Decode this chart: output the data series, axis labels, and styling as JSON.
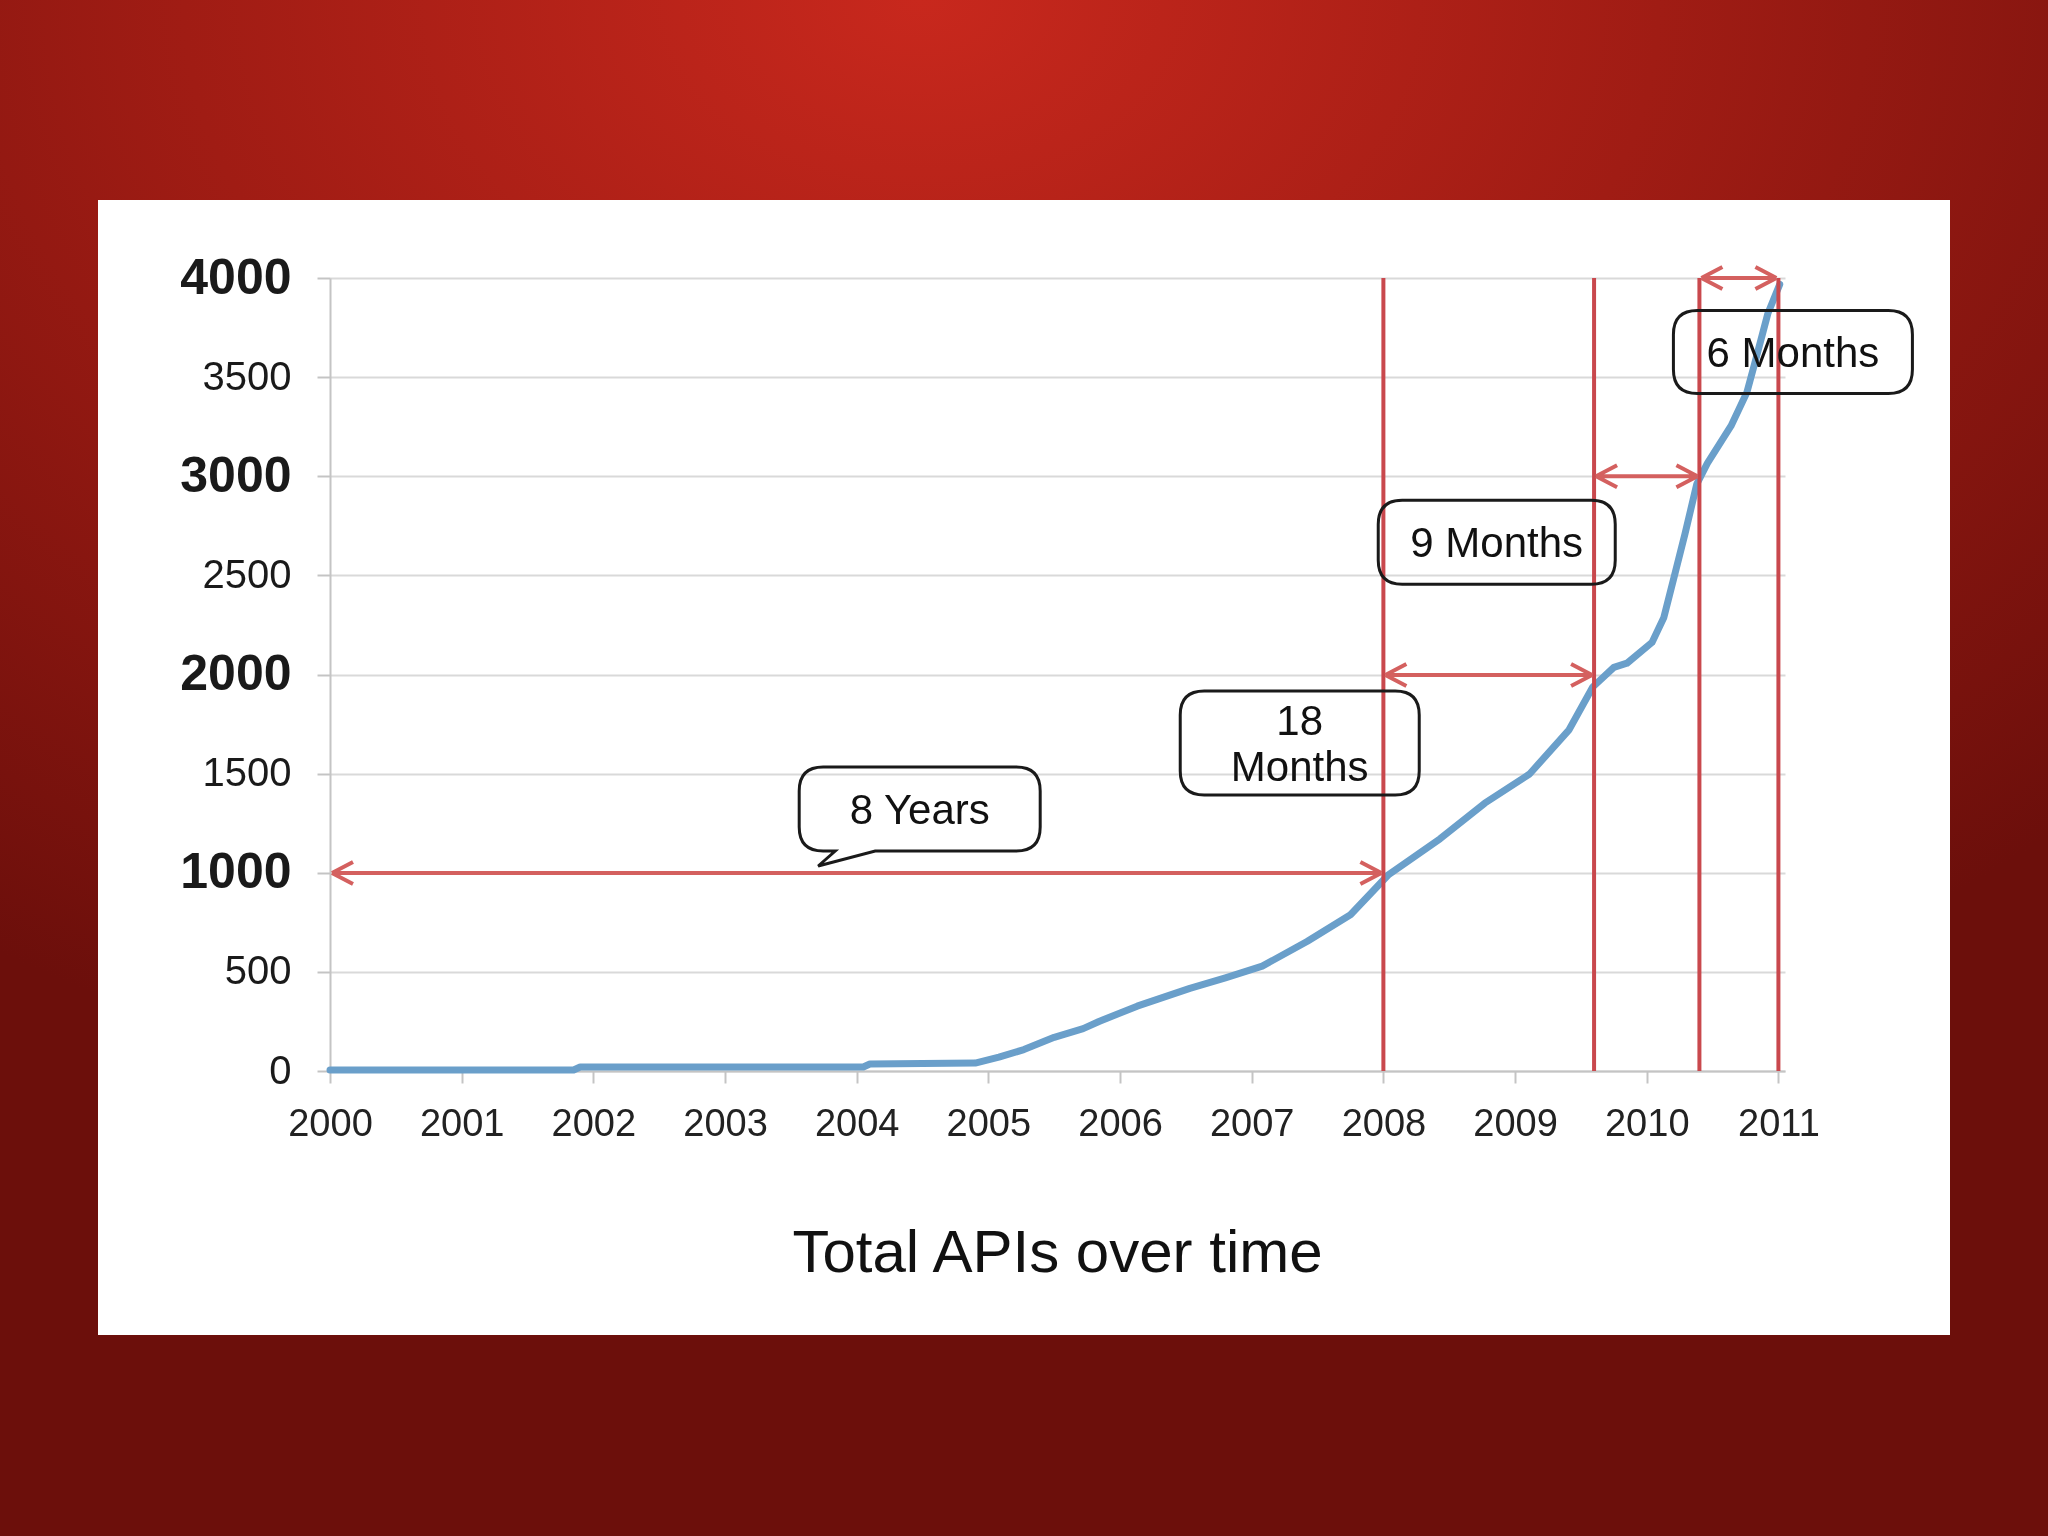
{
  "chart_data": {
    "type": "line",
    "title": "Total APIs over time",
    "x": [
      2000,
      2001.85,
      2001.9,
      2004.05,
      2004.1,
      2004.9,
      2005.08,
      2005.27,
      2005.5,
      2005.72,
      2005.84,
      2006.13,
      2006.53,
      2006.8,
      2007.08,
      2007.42,
      2007.75,
      2008.04,
      2008.43,
      2008.77,
      2009.11,
      2009.41,
      2009.59,
      2009.75,
      2009.85,
      2010.04,
      2010.13,
      2010.21,
      2010.29,
      2010.38,
      2010.46,
      2010.64,
      2010.76,
      2010.82,
      2010.92,
      2011.01
    ],
    "series": [
      {
        "color": "#6a9fca",
        "values": [
          5,
          5,
          20,
          20,
          35,
          40,
          70,
          108,
          170,
          214,
          250,
          327,
          417,
          470,
          529,
          653,
          788,
          991,
          1171,
          1351,
          1498,
          1721,
          1937,
          2036,
          2057,
          2162,
          2288,
          2498,
          2708,
          2960,
          3065,
          3254,
          3422,
          3569,
          3821,
          3968
        ]
      }
    ],
    "xlim": [
      2000,
      2011.05
    ],
    "ylim": [
      0,
      4000
    ],
    "xticks": [
      2000,
      2001,
      2002,
      2003,
      2004,
      2005,
      2006,
      2007,
      2008,
      2009,
      2010,
      2011
    ],
    "yticks": [
      0,
      500,
      1000,
      1500,
      2000,
      2500,
      3000,
      3500,
      4000
    ],
    "grid": "y",
    "ref_lines": [
      {
        "axis": "x",
        "value": 2008,
        "color": "#c9484d"
      },
      {
        "axis": "x",
        "value": 2009.6,
        "color": "#c9484d"
      },
      {
        "axis": "x",
        "value": 2010.4,
        "color": "#c9484d"
      },
      {
        "axis": "x",
        "value": 2011,
        "color": "#c9484d"
      }
    ],
    "annotations": [
      "8 Years",
      "18 Months",
      {
        "text": "9 Months",
        "x": 2010.4,
        "y": 3000
      },
      {
        "text": "6 Months",
        "x": 2011,
        "y": 4000
      }
    ]
  }
}
